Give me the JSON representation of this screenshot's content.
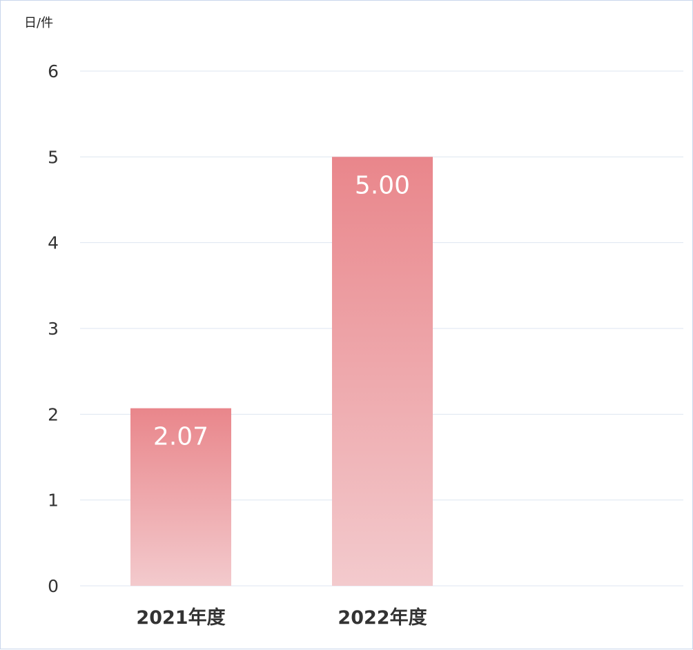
{
  "chart_data": {
    "type": "bar",
    "unit_label": "日/件",
    "categories": [
      "2021年度",
      "2022年度"
    ],
    "values": [
      2.07,
      5.0
    ],
    "data_labels": [
      "2.07",
      "5.00"
    ],
    "ylim": [
      0,
      6
    ],
    "yticks": [
      "0",
      "1",
      "2",
      "3",
      "4",
      "5",
      "6"
    ],
    "grid": true,
    "bar_color_top": "#e9868b",
    "bar_color_bottom": "#f3cacd"
  }
}
